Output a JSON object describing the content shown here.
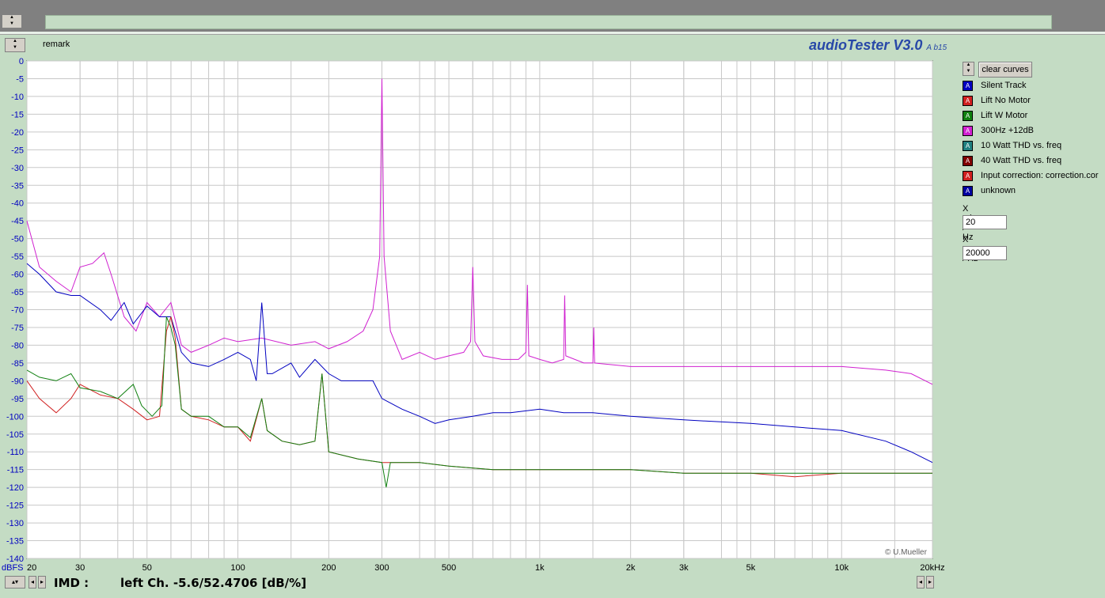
{
  "app": {
    "name": "audioTester V3.0",
    "version_suffix": "A b15",
    "remark_label": "remark",
    "copyright": "© U.Mueller"
  },
  "sidebar": {
    "clear_button": "clear curves",
    "curves": [
      {
        "label": "Silent Track",
        "color": "#0000c0"
      },
      {
        "label": "Lift No Motor",
        "color": "#d02020"
      },
      {
        "label": "Lift W Motor",
        "color": "#108010"
      },
      {
        "label": "300Hz +12dB",
        "color": "#d020d0"
      },
      {
        "label": "10 Watt THD vs. freq",
        "color": "#208080"
      },
      {
        "label": "40 Watt THD vs. freq",
        "color": "#800000"
      },
      {
        "label": "Input correction: correction.cor",
        "color": "#d02020"
      },
      {
        "label": "unknown",
        "color": "#0000a0"
      }
    ],
    "xmin_label": "X min / Hz",
    "xmin_value": "20",
    "xmax_label": "X max / Hz",
    "xmax_value": "20000"
  },
  "status": {
    "imd_label": "IMD :",
    "imd_value": "left Ch. -5.6/52.4706 [dB/%]"
  },
  "chart_data": {
    "type": "line",
    "x_scale": "log",
    "xlim": [
      20,
      20000
    ],
    "ylim": [
      -140,
      0
    ],
    "ylabel": "dBFS",
    "x_ticks": [
      {
        "v": 20,
        "t": "20"
      },
      {
        "v": 30,
        "t": "30"
      },
      {
        "v": 50,
        "t": "50"
      },
      {
        "v": 100,
        "t": "100"
      },
      {
        "v": 200,
        "t": "200"
      },
      {
        "v": 300,
        "t": "300"
      },
      {
        "v": 500,
        "t": "500"
      },
      {
        "v": 1000,
        "t": "1k"
      },
      {
        "v": 2000,
        "t": "2k"
      },
      {
        "v": 3000,
        "t": "3k"
      },
      {
        "v": 5000,
        "t": "5k"
      },
      {
        "v": 10000,
        "t": "10k"
      },
      {
        "v": 20000,
        "t": "20kHz"
      }
    ],
    "y_ticks": [
      0,
      -5,
      -10,
      -15,
      -20,
      -25,
      -30,
      -35,
      -40,
      -45,
      -50,
      -55,
      -60,
      -65,
      -70,
      -75,
      -80,
      -85,
      -90,
      -95,
      -100,
      -105,
      -110,
      -115,
      -120,
      -125,
      -130,
      -135,
      -140
    ],
    "grid": true,
    "series": [
      {
        "name": "300Hz +12dB",
        "color": "#d020d0",
        "x": [
          20,
          22,
          25,
          28,
          30,
          33,
          36,
          38,
          42,
          46,
          50,
          55,
          60,
          65,
          70,
          80,
          90,
          100,
          120,
          150,
          180,
          200,
          230,
          260,
          280,
          295,
          300,
          305,
          320,
          350,
          400,
          450,
          500,
          560,
          590,
          600,
          610,
          650,
          750,
          850,
          900,
          910,
          920,
          1000,
          1100,
          1200,
          1210,
          1220,
          1400,
          1500,
          1510,
          1520,
          2000,
          3000,
          5000,
          7000,
          10000,
          14000,
          17000,
          20000
        ],
        "y": [
          -45,
          -58,
          -62,
          -65,
          -58,
          -57,
          -54,
          -60,
          -72,
          -76,
          -68,
          -72,
          -68,
          -80,
          -82,
          -80,
          -78,
          -79,
          -78,
          -80,
          -79,
          -81,
          -79,
          -76,
          -70,
          -55,
          -5,
          -55,
          -76,
          -84,
          -82,
          -84,
          -83,
          -82,
          -79,
          -58,
          -79,
          -83,
          -84,
          -84,
          -82,
          -63,
          -83,
          -84,
          -85,
          -84,
          -66,
          -83,
          -85,
          -85,
          -75,
          -85,
          -86,
          -86,
          -86,
          -86,
          -86,
          -87,
          -88,
          -91
        ]
      },
      {
        "name": "Silent Track",
        "color": "#0000c0",
        "x": [
          20,
          22,
          25,
          28,
          30,
          35,
          38,
          42,
          45,
          50,
          55,
          60,
          65,
          70,
          80,
          90,
          100,
          110,
          115,
          120,
          125,
          130,
          150,
          160,
          180,
          200,
          220,
          250,
          280,
          300,
          350,
          400,
          450,
          500,
          600,
          700,
          800,
          1000,
          1200,
          1500,
          2000,
          3000,
          5000,
          7000,
          10000,
          14000,
          17000,
          20000
        ],
        "y": [
          -57,
          -60,
          -65,
          -66,
          -66,
          -70,
          -73,
          -68,
          -74,
          -69,
          -72,
          -72,
          -82,
          -85,
          -86,
          -84,
          -82,
          -84,
          -90,
          -68,
          -88,
          -88,
          -85,
          -89,
          -84,
          -88,
          -90,
          -90,
          -90,
          -95,
          -98,
          -100,
          -102,
          -101,
          -100,
          -99,
          -99,
          -98,
          -99,
          -99,
          -100,
          -101,
          -102,
          -103,
          -104,
          -107,
          -110,
          -113
        ]
      },
      {
        "name": "Lift No Motor",
        "color": "#d02020",
        "x": [
          20,
          22,
          25,
          28,
          30,
          35,
          40,
          45,
          50,
          55,
          58,
          60,
          62,
          65,
          70,
          80,
          90,
          100,
          110,
          120,
          125,
          140,
          160,
          180,
          190,
          200,
          250,
          300,
          400,
          500,
          700,
          1000,
          1500,
          2000,
          3000,
          5000,
          7000,
          10000,
          15000,
          20000
        ],
        "y": [
          -90,
          -95,
          -99,
          -95,
          -91,
          -94,
          -95,
          -98,
          -101,
          -100,
          -76,
          -72,
          -78,
          -98,
          -100,
          -101,
          -103,
          -103,
          -107,
          -95,
          -104,
          -107,
          -108,
          -107,
          -88,
          -110,
          -112,
          -113,
          -113,
          -114,
          -115,
          -115,
          -115,
          -115,
          -116,
          -116,
          -117,
          -116,
          -116,
          -116
        ]
      },
      {
        "name": "Lift W Motor",
        "color": "#108010",
        "x": [
          20,
          22,
          25,
          28,
          30,
          35,
          40,
          45,
          48,
          52,
          56,
          58,
          60,
          62,
          65,
          70,
          80,
          90,
          100,
          110,
          120,
          125,
          140,
          160,
          180,
          190,
          200,
          250,
          300,
          310,
          320,
          400,
          500,
          700,
          1000,
          1500,
          2000,
          3000,
          5000,
          7000,
          10000,
          15000,
          20000
        ],
        "y": [
          -87,
          -89,
          -90,
          -88,
          -92,
          -93,
          -95,
          -91,
          -97,
          -100,
          -97,
          -72,
          -75,
          -80,
          -98,
          -100,
          -100,
          -103,
          -103,
          -106,
          -95,
          -104,
          -107,
          -108,
          -107,
          -88,
          -110,
          -112,
          -113,
          -120,
          -113,
          -113,
          -114,
          -115,
          -115,
          -115,
          -115,
          -116,
          -116,
          -116,
          -116,
          -116,
          -116
        ]
      }
    ]
  }
}
